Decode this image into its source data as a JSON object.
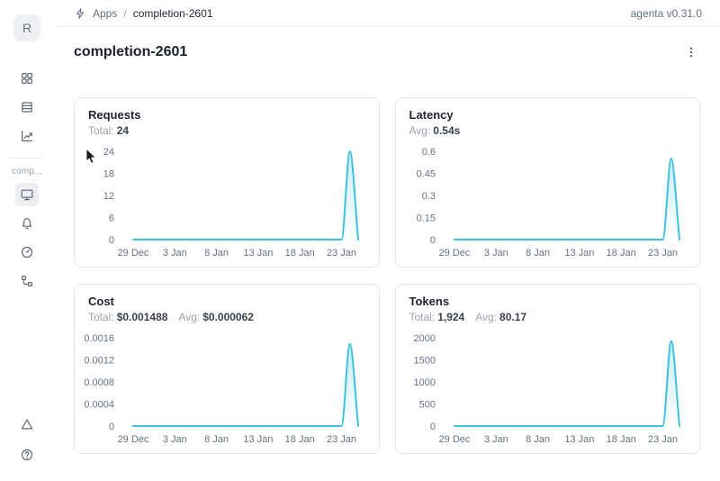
{
  "colors": {
    "accent": "#3ec2de",
    "tick_gray": "#667085",
    "text_dark": "#1f2430"
  },
  "header": {
    "breadcrumb": {
      "icon": "lightning-icon",
      "apps_label": "Apps",
      "separator": "/",
      "current": "completion-2601"
    },
    "version": "agenta v0.31.0"
  },
  "sidebar": {
    "avatar_letter": "R",
    "workspace_label": "comp...",
    "nav_top": [
      {
        "name": "apps",
        "icon": "grid-icon",
        "selected": false
      },
      {
        "name": "test-sets",
        "icon": "rows-icon",
        "selected": false
      },
      {
        "name": "evaluations",
        "icon": "chart-trend-icon",
        "selected": false
      }
    ],
    "nav_app": [
      {
        "name": "overview",
        "icon": "monitor-icon",
        "selected": true
      },
      {
        "name": "playground",
        "icon": "bell-icon",
        "selected": false
      },
      {
        "name": "observability",
        "icon": "gauge-icon",
        "selected": false
      },
      {
        "name": "traces",
        "icon": "tree-icon",
        "selected": false
      }
    ],
    "nav_bottom": [
      {
        "name": "deploy",
        "icon": "triangle-icon",
        "selected": false
      },
      {
        "name": "help",
        "icon": "help-icon",
        "selected": false
      }
    ]
  },
  "page": {
    "title": "completion-2601"
  },
  "chart_data": [
    {
      "id": "requests",
      "type": "area",
      "title": "Requests",
      "stats": [
        {
          "label": "Total:",
          "value": "24"
        }
      ],
      "x_tick_labels": [
        "29 Dec",
        "3 Jan",
        "8 Jan",
        "13 Jan",
        "18 Jan",
        "23 Jan"
      ],
      "x_tick_days": [
        0,
        5,
        10,
        15,
        20,
        25
      ],
      "values": [
        0,
        0,
        0,
        0,
        0,
        0,
        0,
        0,
        0,
        0,
        0,
        0,
        0,
        0,
        0,
        0,
        0,
        0,
        0,
        0,
        0,
        0,
        0,
        0,
        0,
        0,
        24,
        0
      ],
      "ymax": 24,
      "ylim": [
        0,
        24
      ],
      "ytick_labels": [
        "24",
        "18",
        "12",
        "6",
        "0"
      ],
      "grid": false,
      "legend": false
    },
    {
      "id": "latency",
      "type": "area",
      "title": "Latency",
      "stats": [
        {
          "label": "Avg:",
          "value": "0.54s"
        }
      ],
      "x_tick_labels": [
        "29 Dec",
        "3 Jan",
        "8 Jan",
        "13 Jan",
        "18 Jan",
        "23 Jan"
      ],
      "x_tick_days": [
        0,
        5,
        10,
        15,
        20,
        25
      ],
      "values": [
        0,
        0,
        0,
        0,
        0,
        0,
        0,
        0,
        0,
        0,
        0,
        0,
        0,
        0,
        0,
        0,
        0,
        0,
        0,
        0,
        0,
        0,
        0,
        0,
        0,
        0,
        0.55,
        0
      ],
      "ymax": 0.6,
      "ylim": [
        0,
        0.6
      ],
      "ytick_labels": [
        "0.6",
        "0.45",
        "0.3",
        "0.15",
        "0"
      ],
      "grid": false,
      "legend": false
    },
    {
      "id": "cost",
      "type": "area",
      "title": "Cost",
      "stats": [
        {
          "label": "Total:",
          "value": "$0.001488"
        },
        {
          "label": "Avg:",
          "value": "$0.000062"
        }
      ],
      "x_tick_labels": [
        "29 Dec",
        "3 Jan",
        "8 Jan",
        "13 Jan",
        "18 Jan",
        "23 Jan"
      ],
      "x_tick_days": [
        0,
        5,
        10,
        15,
        20,
        25
      ],
      "values": [
        0,
        0,
        0,
        0,
        0,
        0,
        0,
        0,
        0,
        0,
        0,
        0,
        0,
        0,
        0,
        0,
        0,
        0,
        0,
        0,
        0,
        0,
        0,
        0,
        0,
        0,
        0.001488,
        0
      ],
      "ymax": 0.0016,
      "ylim": [
        0,
        0.0016
      ],
      "ytick_labels": [
        "0.0016",
        "0.0012",
        "0.0008",
        "0.0004",
        "0"
      ],
      "grid": false,
      "legend": false
    },
    {
      "id": "tokens",
      "type": "area",
      "title": "Tokens",
      "stats": [
        {
          "label": "Total:",
          "value": "1,924"
        },
        {
          "label": "Avg:",
          "value": "80.17"
        }
      ],
      "x_tick_labels": [
        "29 Dec",
        "3 Jan",
        "8 Jan",
        "13 Jan",
        "18 Jan",
        "23 Jan"
      ],
      "x_tick_days": [
        0,
        5,
        10,
        15,
        20,
        25
      ],
      "values": [
        0,
        0,
        0,
        0,
        0,
        0,
        0,
        0,
        0,
        0,
        0,
        0,
        0,
        0,
        0,
        0,
        0,
        0,
        0,
        0,
        0,
        0,
        0,
        0,
        0,
        0,
        1924,
        0
      ],
      "ymax": 2000,
      "ylim": [
        0,
        2000
      ],
      "ytick_labels": [
        "2000",
        "1500",
        "1000",
        "500",
        "0"
      ],
      "grid": false,
      "legend": false
    }
  ]
}
